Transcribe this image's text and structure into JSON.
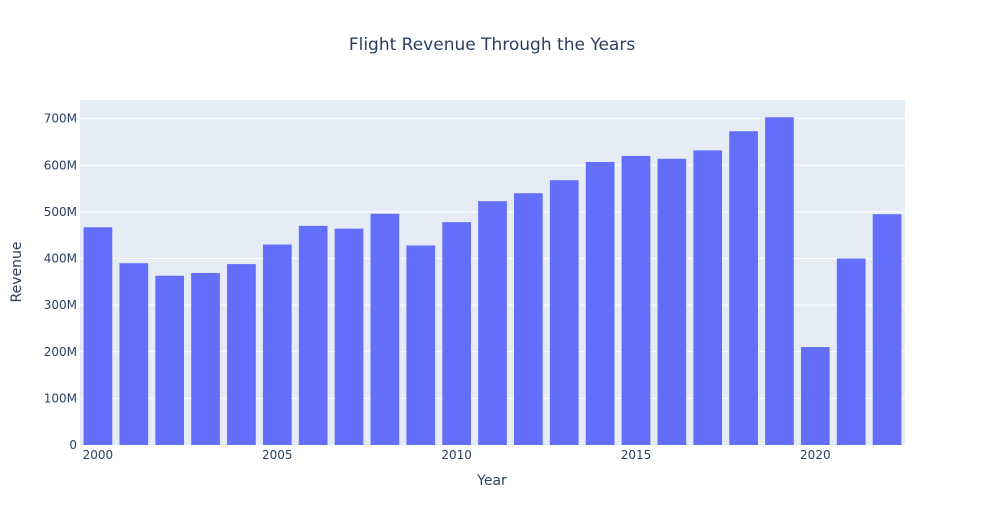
{
  "chart_data": {
    "type": "bar",
    "title": "Flight Revenue Through the Years",
    "xlabel": "Year",
    "ylabel": "Revenue",
    "x": [
      2000,
      2001,
      2002,
      2003,
      2004,
      2005,
      2006,
      2007,
      2008,
      2009,
      2010,
      2011,
      2012,
      2013,
      2014,
      2015,
      2016,
      2017,
      2018,
      2019,
      2020,
      2021,
      2022
    ],
    "values": [
      467000000,
      390000000,
      363000000,
      369000000,
      388000000,
      430000000,
      470000000,
      464000000,
      496000000,
      428000000,
      478000000,
      523000000,
      540000000,
      568000000,
      607000000,
      620000000,
      614000000,
      632000000,
      673000000,
      703000000,
      210000000,
      400000000,
      495000000
    ],
    "ylim": [
      0,
      740000000
    ],
    "xlim": [
      1999.5,
      2022.5
    ],
    "yticks": [
      0,
      100000000,
      200000000,
      300000000,
      400000000,
      500000000,
      600000000,
      700000000
    ],
    "ytick_labels": [
      "0",
      "100M",
      "200M",
      "300M",
      "400M",
      "500M",
      "600M",
      "700M"
    ],
    "xticks": [
      2000,
      2005,
      2010,
      2015,
      2020
    ],
    "xtick_labels": [
      "2000",
      "2005",
      "2010",
      "2015",
      "2020"
    ],
    "grid": true,
    "colors": {
      "bar": "#636efa",
      "plot_bg": "#e5ecf6",
      "grid": "#ffffff",
      "text": "#2a3f5f"
    }
  }
}
